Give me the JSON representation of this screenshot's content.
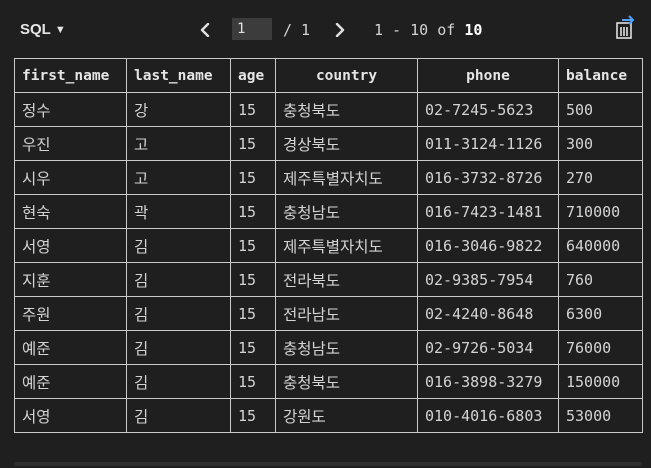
{
  "toolbar": {
    "language_label": "SQL",
    "language_caret": "▼",
    "prev_icon": "chevron-left-icon",
    "next_icon": "chevron-right-icon",
    "page_value": "1",
    "page_total": "/ 1",
    "range_prefix": "1 - 10 of ",
    "range_total": "10",
    "export_icon": "export-icon"
  },
  "table": {
    "columns": [
      "first_name",
      "last_name",
      "age",
      "country",
      "phone",
      "balance"
    ],
    "rows": [
      [
        "정수",
        "강",
        "15",
        "충청북도",
        "02-7245-5623",
        "500"
      ],
      [
        "우진",
        "고",
        "15",
        "경상북도",
        "011-3124-1126",
        "300"
      ],
      [
        "시우",
        "고",
        "15",
        "제주특별자치도",
        "016-3732-8726",
        "270"
      ],
      [
        "현숙",
        "곽",
        "15",
        "충청남도",
        "016-7423-1481",
        "710000"
      ],
      [
        "서영",
        "김",
        "15",
        "제주특별자치도",
        "016-3046-9822",
        "640000"
      ],
      [
        "지훈",
        "김",
        "15",
        "전라북도",
        "02-9385-7954",
        "760"
      ],
      [
        "주원",
        "김",
        "15",
        "전라남도",
        "02-4240-8648",
        "6300"
      ],
      [
        "예준",
        "김",
        "15",
        "충청남도",
        "02-9726-5034",
        "76000"
      ],
      [
        "예준",
        "김",
        "15",
        "충청북도",
        "016-3898-3279",
        "150000"
      ],
      [
        "서영",
        "김",
        "15",
        "강원도",
        "010-4016-6803",
        "53000"
      ]
    ]
  },
  "colors": {
    "background": "#1f1f1f",
    "grid_line": "#c9c9c9",
    "text": "#d4d4d4",
    "accent": "#4ea1ff"
  }
}
